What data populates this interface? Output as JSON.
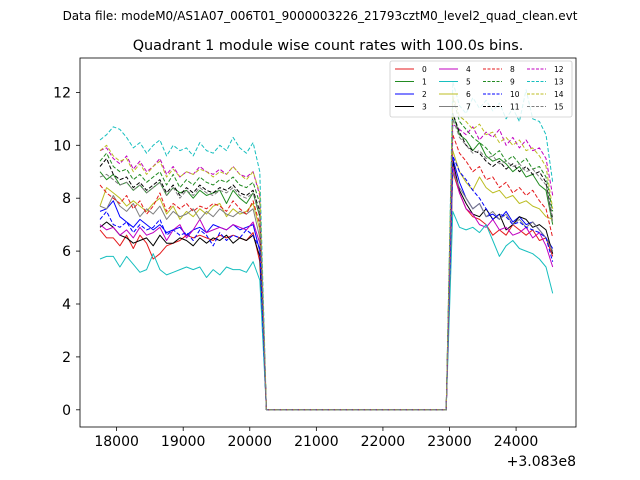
{
  "header": "Data file: modeM0/AS1A07_006T01_9000003226_21793cztM0_level2_quad_clean.evt",
  "chart_data": {
    "type": "line",
    "title": "Quadrant 1 module wise count rates with 100.0s bins.",
    "xlabel": "",
    "ylabel": "",
    "x_offset_label": "+3.083e8",
    "xlim": [
      17450,
      24900
    ],
    "ylim": [
      -0.65,
      13.3
    ],
    "xticks": [
      18000,
      19000,
      20000,
      21000,
      22000,
      23000,
      24000
    ],
    "xtick_labels": [
      "18000",
      "19000",
      "20000",
      "21000",
      "22000",
      "23000",
      "24000"
    ],
    "yticks": [
      0,
      2,
      4,
      6,
      8,
      10,
      12
    ],
    "ytick_labels": [
      "0",
      "2",
      "4",
      "6",
      "8",
      "10",
      "12"
    ],
    "legend_position": "upper-right",
    "segments": [
      {
        "x_start": 17750,
        "x_end": 20150,
        "step": 100
      },
      {
        "x_start": 20250,
        "x_end": 22950,
        "step": 100
      },
      {
        "x_start": 23050,
        "x_end": 24550,
        "step": 100
      }
    ],
    "series": [
      {
        "name": "0",
        "color": "#e41a1c",
        "dashed": false,
        "base": [
          6.8,
          6.5,
          6.5,
          6.2,
          6.6,
          6.1,
          6.6,
          6.3,
          5.7,
          5.9,
          6.2,
          6.3,
          6.4,
          6.6,
          6.5,
          6.6,
          6.5,
          6.4,
          6.6,
          6.5,
          6.6,
          6.5,
          6.4,
          6.7,
          5.6
        ],
        "off": 0.0,
        "high": [
          9.0,
          8.2,
          7.6,
          7.3,
          7.2,
          7.0,
          6.6,
          6.8,
          6.6,
          7.0,
          6.8,
          6.6,
          6.8,
          6.4,
          6.5,
          5.8
        ]
      },
      {
        "name": "1",
        "color": "#228b22",
        "dashed": false,
        "base": [
          9.0,
          8.7,
          8.9,
          8.5,
          8.6,
          8.3,
          8.5,
          8.2,
          8.4,
          8.6,
          8.1,
          8.4,
          8.2,
          8.3,
          8.0,
          8.3,
          8.1,
          8.2,
          8.3,
          7.8,
          8.3,
          8.0,
          7.8,
          8.2,
          7.3
        ],
        "off": 0.0,
        "high": [
          11.2,
          10.4,
          10.2,
          9.8,
          10.1,
          9.6,
          9.4,
          9.5,
          9.3,
          9.0,
          9.2,
          8.8,
          8.9,
          8.5,
          8.3,
          7.0
        ]
      },
      {
        "name": "2",
        "color": "#0000ff",
        "dashed": false,
        "base": [
          7.5,
          7.6,
          7.9,
          7.3,
          7.1,
          6.9,
          7.2,
          7.0,
          6.8,
          7.0,
          6.7,
          6.8,
          6.9,
          6.6,
          6.8,
          6.9,
          6.7,
          7.0,
          6.9,
          6.8,
          7.0,
          6.8,
          6.9,
          7.0,
          6.0
        ],
        "off": 0.0,
        "high": [
          9.5,
          8.6,
          8.0,
          7.6,
          7.8,
          7.3,
          7.4,
          7.2,
          7.5,
          7.1,
          7.3,
          7.0,
          7.1,
          6.8,
          6.5,
          6.1
        ]
      },
      {
        "name": "3",
        "color": "#000000",
        "dashed": false,
        "base": [
          6.9,
          7.1,
          6.9,
          6.6,
          6.5,
          6.3,
          6.4,
          6.5,
          6.2,
          6.6,
          6.3,
          6.3,
          6.5,
          6.4,
          6.2,
          6.5,
          6.3,
          6.5,
          6.4,
          6.6,
          6.3,
          6.5,
          6.4,
          6.6,
          5.8
        ],
        "off": 0.0,
        "high": [
          9.4,
          8.3,
          7.8,
          7.4,
          7.3,
          7.6,
          7.2,
          7.4,
          6.8,
          7.0,
          7.3,
          7.2,
          6.9,
          7.0,
          6.8,
          5.9
        ]
      },
      {
        "name": "4",
        "color": "#c000c0",
        "dashed": false,
        "base": [
          7.0,
          6.8,
          6.9,
          6.6,
          6.8,
          6.5,
          6.9,
          6.6,
          6.7,
          6.9,
          6.4,
          6.8,
          7.0,
          6.5,
          6.8,
          7.2,
          6.7,
          6.8,
          6.9,
          6.8,
          7.0,
          6.9,
          6.8,
          7.1,
          6.3
        ],
        "off": 0.0,
        "high": [
          9.2,
          8.2,
          7.6,
          7.4,
          7.0,
          6.9,
          7.2,
          6.8,
          6.9,
          6.6,
          6.7,
          6.9,
          6.5,
          6.7,
          6.2,
          5.4
        ]
      },
      {
        "name": "5",
        "color": "#17bfbf",
        "dashed": false,
        "base": [
          5.7,
          5.8,
          5.8,
          5.4,
          5.8,
          5.5,
          5.2,
          5.3,
          5.9,
          5.3,
          5.1,
          5.2,
          5.3,
          5.4,
          5.3,
          5.4,
          5.0,
          5.3,
          5.1,
          5.4,
          5.3,
          5.3,
          5.2,
          5.6,
          4.9
        ],
        "off": 0.0,
        "high": [
          7.5,
          6.9,
          6.8,
          6.9,
          6.7,
          7.0,
          6.4,
          5.8,
          6.2,
          6.4,
          6.1,
          6.0,
          5.9,
          5.7,
          5.4,
          4.4
        ]
      },
      {
        "name": "6",
        "color": "#bcbd22",
        "dashed": false,
        "base": [
          7.7,
          8.4,
          8.2,
          8.0,
          7.7,
          7.9,
          7.7,
          7.5,
          7.8,
          8.0,
          7.4,
          7.7,
          7.2,
          7.5,
          7.3,
          7.6,
          7.4,
          7.7,
          7.8,
          7.3,
          7.6,
          7.4,
          7.5,
          7.8,
          6.8
        ],
        "off": 0.0,
        "high": [
          9.8,
          9.0,
          8.6,
          8.3,
          8.8,
          8.4,
          8.2,
          8.3,
          8.0,
          8.1,
          7.8,
          7.9,
          7.7,
          7.6,
          7.3,
          7.2
        ]
      },
      {
        "name": "7",
        "color": "#7f7f7f",
        "dashed": false,
        "base": [
          7.7,
          7.6,
          8.1,
          7.7,
          7.5,
          7.8,
          7.3,
          7.6,
          7.4,
          7.7,
          7.2,
          7.5,
          7.3,
          7.4,
          7.6,
          7.2,
          7.5,
          7.3,
          7.6,
          7.4,
          7.3,
          7.5,
          7.4,
          7.6,
          6.5
        ],
        "off": 0.0,
        "high": [
          9.0,
          8.4,
          8.0,
          7.6,
          7.8,
          7.3,
          7.5,
          7.2,
          7.4,
          7.0,
          7.2,
          6.9,
          7.1,
          6.8,
          6.5,
          6.0
        ]
      },
      {
        "name": "8",
        "color": "#e41a1c",
        "dashed": true,
        "base": [
          8.5,
          8.2,
          8.0,
          7.8,
          8.1,
          7.6,
          7.9,
          7.4,
          7.7,
          8.2,
          7.5,
          7.8,
          7.6,
          7.8,
          7.5,
          7.7,
          7.6,
          7.8,
          7.7,
          7.5,
          7.9,
          7.6,
          7.4,
          7.9,
          7.0
        ],
        "off": 0.0,
        "high": [
          10.4,
          9.7,
          9.4,
          9.0,
          9.2,
          8.7,
          8.8,
          8.4,
          8.6,
          8.2,
          8.4,
          8.1,
          8.3,
          7.9,
          7.6,
          6.5
        ]
      },
      {
        "name": "9",
        "color": "#228b22",
        "dashed": true,
        "base": [
          9.4,
          9.7,
          9.2,
          9.0,
          9.1,
          8.7,
          8.9,
          8.6,
          8.8,
          9.0,
          8.5,
          8.9,
          8.4,
          8.7,
          8.5,
          8.8,
          8.6,
          8.5,
          8.7,
          8.6,
          8.8,
          8.5,
          8.4,
          8.6,
          7.8
        ],
        "off": 0.0,
        "high": [
          11.8,
          10.9,
          10.6,
          10.3,
          10.1,
          9.9,
          9.6,
          9.8,
          9.4,
          9.6,
          9.3,
          9.5,
          9.1,
          9.2,
          8.8,
          7.5
        ]
      },
      {
        "name": "10",
        "color": "#0000ff",
        "dashed": true,
        "base": [
          7.2,
          7.5,
          7.0,
          6.9,
          7.1,
          6.7,
          7.0,
          6.8,
          6.9,
          7.2,
          6.6,
          6.8,
          6.6,
          6.7,
          6.4,
          6.8,
          6.6,
          6.2,
          6.7,
          6.4,
          6.6,
          6.5,
          6.8,
          6.6,
          6.1
        ],
        "off": 0.0,
        "high": [
          9.6,
          9.0,
          8.7,
          8.3,
          8.0,
          7.6,
          7.2,
          7.4,
          7.3,
          7.0,
          7.1,
          6.9,
          6.8,
          6.7,
          6.5,
          5.6
        ]
      },
      {
        "name": "11",
        "color": "#000000",
        "dashed": true,
        "base": [
          9.2,
          9.5,
          8.9,
          8.7,
          8.8,
          8.4,
          8.6,
          8.3,
          8.5,
          8.7,
          8.2,
          8.5,
          8.1,
          8.4,
          8.2,
          8.5,
          8.3,
          8.2,
          8.4,
          8.3,
          8.5,
          8.2,
          8.1,
          8.3,
          7.5
        ],
        "off": 0.0,
        "high": [
          11.2,
          10.5,
          10.0,
          9.8,
          9.7,
          9.4,
          9.2,
          9.4,
          9.1,
          9.3,
          9.0,
          9.2,
          8.9,
          9.0,
          8.6,
          7.2
        ]
      },
      {
        "name": "12",
        "color": "#c000c0",
        "dashed": true,
        "base": [
          9.8,
          9.9,
          9.5,
          9.3,
          9.6,
          9.1,
          9.4,
          9.0,
          9.2,
          9.5,
          8.9,
          9.2,
          8.8,
          9.0,
          8.9,
          9.2,
          9.0,
          8.9,
          9.1,
          8.9,
          9.2,
          8.9,
          8.8,
          9.0,
          8.1
        ],
        "off": 0.0,
        "high": [
          10.8,
          10.6,
          10.4,
          10.7,
          10.2,
          10.5,
          10.3,
          10.6,
          10.0,
          10.3,
          9.9,
          10.2,
          9.8,
          9.9,
          9.5,
          8.1
        ]
      },
      {
        "name": "13",
        "color": "#17bfbf",
        "dashed": true,
        "base": [
          10.2,
          10.4,
          10.7,
          10.6,
          10.3,
          9.9,
          10.1,
          9.7,
          10.0,
          10.2,
          9.6,
          10.0,
          9.8,
          9.9,
          9.6,
          10.1,
          9.8,
          9.7,
          10.0,
          9.8,
          10.3,
          9.9,
          9.7,
          10.1,
          9.0
        ],
        "off": 0.0,
        "high": [
          12.4,
          11.5,
          11.2,
          11.8,
          11.4,
          11.7,
          11.3,
          11.6,
          11.0,
          11.4,
          10.9,
          12.1,
          11.0,
          10.9,
          10.4,
          8.6
        ]
      },
      {
        "name": "14",
        "color": "#bcbd22",
        "dashed": true,
        "base": [
          9.8,
          10.0,
          9.6,
          9.4,
          9.5,
          9.0,
          9.3,
          8.9,
          9.2,
          9.4,
          8.8,
          9.1,
          8.8,
          9.0,
          8.9,
          9.1,
          9.0,
          8.8,
          9.0,
          8.9,
          9.2,
          8.9,
          8.7,
          9.0,
          8.2
        ],
        "off": 0.0,
        "high": [
          11.9,
          11.1,
          10.9,
          10.6,
          10.8,
          10.4,
          10.5,
          10.1,
          10.3,
          10.0,
          10.2,
          9.8,
          9.9,
          9.6,
          9.2,
          7.6
        ]
      },
      {
        "name": "15",
        "color": "#7f7f7f",
        "dashed": true,
        "base": [
          8.8,
          8.9,
          8.7,
          8.5,
          8.6,
          8.3,
          8.5,
          8.2,
          8.4,
          8.6,
          8.1,
          8.4,
          8.0,
          8.3,
          8.1,
          8.4,
          8.2,
          8.1,
          8.3,
          8.2,
          8.4,
          8.1,
          8.0,
          8.2,
          7.4
        ],
        "off": 0.0,
        "high": [
          11.0,
          10.3,
          10.0,
          9.7,
          9.8,
          9.5,
          9.6,
          9.3,
          9.4,
          9.2,
          9.3,
          9.0,
          9.1,
          8.8,
          8.5,
          7.1
        ]
      }
    ]
  }
}
